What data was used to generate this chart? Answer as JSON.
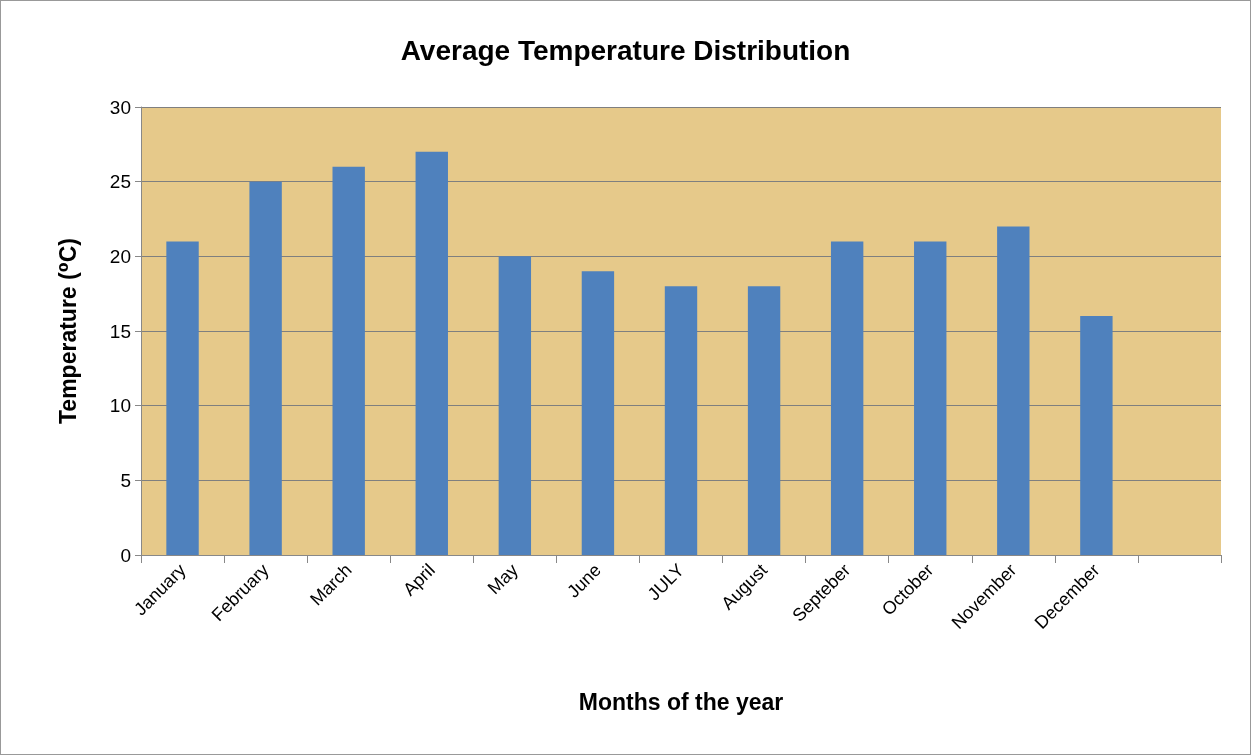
{
  "chart_data": {
    "type": "bar",
    "title": "Average Temperature Distribution",
    "xlabel": "Months of the year",
    "ylabel": "Temperature (⁰C)",
    "categories": [
      "January",
      "February",
      "March",
      "April",
      "May",
      "June",
      "JULY",
      "August",
      "Septeber",
      "October",
      "November",
      "December",
      null
    ],
    "values": [
      21,
      25,
      26,
      27,
      20,
      19,
      18,
      18,
      21,
      21,
      22,
      16,
      null
    ],
    "color": "#4f81bd",
    "ylim": [
      0,
      30
    ],
    "yticks": [
      0,
      5,
      10,
      15,
      20,
      25,
      30
    ],
    "grid": "y"
  }
}
